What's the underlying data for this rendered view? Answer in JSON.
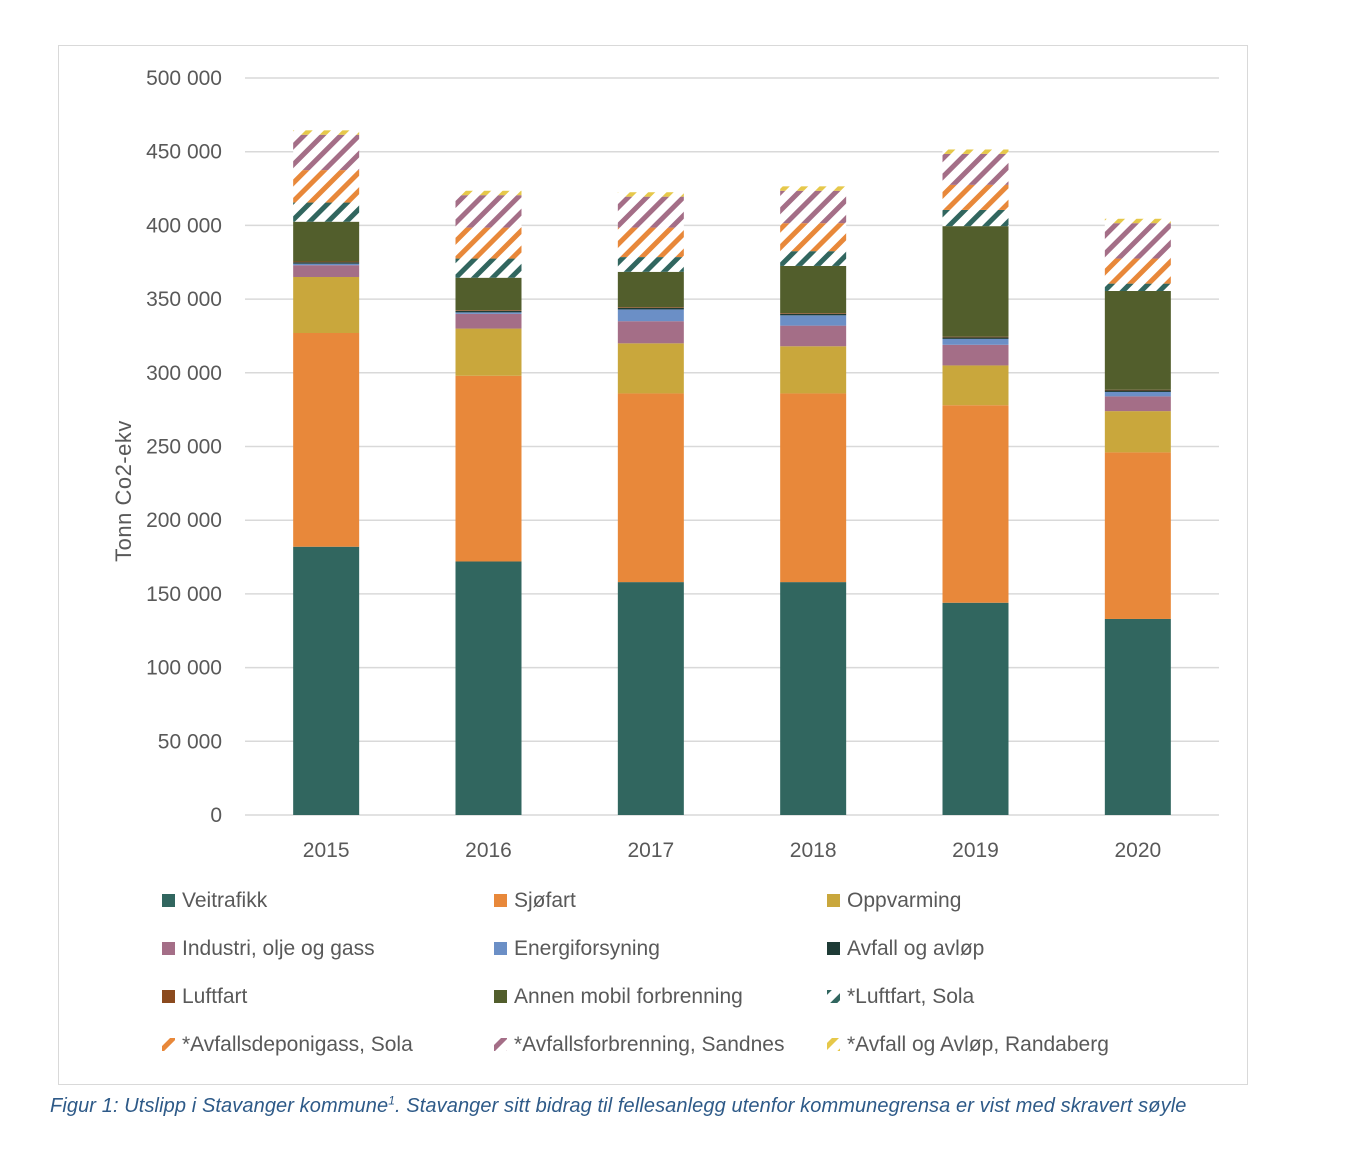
{
  "chart_data": {
    "type": "bar",
    "stacked": true,
    "categories": [
      "2015",
      "2016",
      "2017",
      "2018",
      "2019",
      "2020"
    ],
    "ylabel": "Tonn Co2-ekv",
    "xlabel": "",
    "ylim": [
      0,
      500000
    ],
    "yticks": [
      0,
      50000,
      100000,
      150000,
      200000,
      250000,
      300000,
      350000,
      400000,
      450000,
      500000
    ],
    "ytick_labels": [
      "0",
      "50 000",
      "100 000",
      "150 000",
      "200 000",
      "250 000",
      "300 000",
      "350 000",
      "400 000",
      "450 000",
      "500 000"
    ],
    "grid": true,
    "legend_position": "bottom",
    "series": [
      {
        "name": "Veitrafikk",
        "color": "#31665f",
        "pattern": "solid",
        "values": [
          182000,
          172000,
          158000,
          158000,
          144000,
          133000
        ]
      },
      {
        "name": "Sjøfart",
        "color": "#e8883a",
        "pattern": "solid",
        "values": [
          145000,
          126000,
          128000,
          128000,
          134000,
          113000
        ]
      },
      {
        "name": "Oppvarming",
        "color": "#c9a73c",
        "pattern": "solid",
        "values": [
          38000,
          32000,
          34000,
          32000,
          27000,
          28000
        ]
      },
      {
        "name": "Industri, olje og gass",
        "color": "#a46e87",
        "pattern": "solid",
        "values": [
          8000,
          10000,
          15000,
          14000,
          14000,
          10000
        ]
      },
      {
        "name": "Energiforsyning",
        "color": "#6b8fc6",
        "pattern": "solid",
        "values": [
          1000,
          1000,
          8000,
          7000,
          4000,
          3000
        ]
      },
      {
        "name": "Avfall og avløp",
        "color": "#1e3b36",
        "pattern": "solid",
        "values": [
          1000,
          1000,
          1000,
          1000,
          1000,
          1000
        ]
      },
      {
        "name": "Luftfart",
        "color": "#8b4a1e",
        "pattern": "solid",
        "values": [
          500,
          500,
          500,
          500,
          500,
          500
        ]
      },
      {
        "name": "Annen mobil forbrenning",
        "color": "#525e2c",
        "pattern": "solid",
        "values": [
          27000,
          22000,
          24000,
          32000,
          75000,
          67000
        ]
      },
      {
        "name": "*Luftfart, Sola",
        "color": "#31665f",
        "pattern": "hatch",
        "values": [
          13000,
          13000,
          10000,
          10000,
          11000,
          5000
        ]
      },
      {
        "name": "*Avfallsdeponigass, Sola",
        "color": "#e8883a",
        "pattern": "hatch",
        "values": [
          22000,
          21000,
          20000,
          19000,
          17000,
          17000
        ]
      },
      {
        "name": "*Avfallsforbrenning, Sandnes",
        "color": "#a46e87",
        "pattern": "hatch",
        "values": [
          24000,
          22000,
          21000,
          22000,
          21000,
          24000
        ]
      },
      {
        "name": "*Avfall og Avløp, Randaberg",
        "color": "#e6c84a",
        "pattern": "hatch",
        "values": [
          3000,
          3000,
          3000,
          3000,
          3000,
          3000
        ]
      }
    ]
  },
  "caption": {
    "main": "Figur 1: Utslipp i Stavanger kommune",
    "superscript": "1",
    "rest": ". Stavanger sitt bidrag til fellesanlegg utenfor kommunegrensa er vist med skravert søyle"
  }
}
